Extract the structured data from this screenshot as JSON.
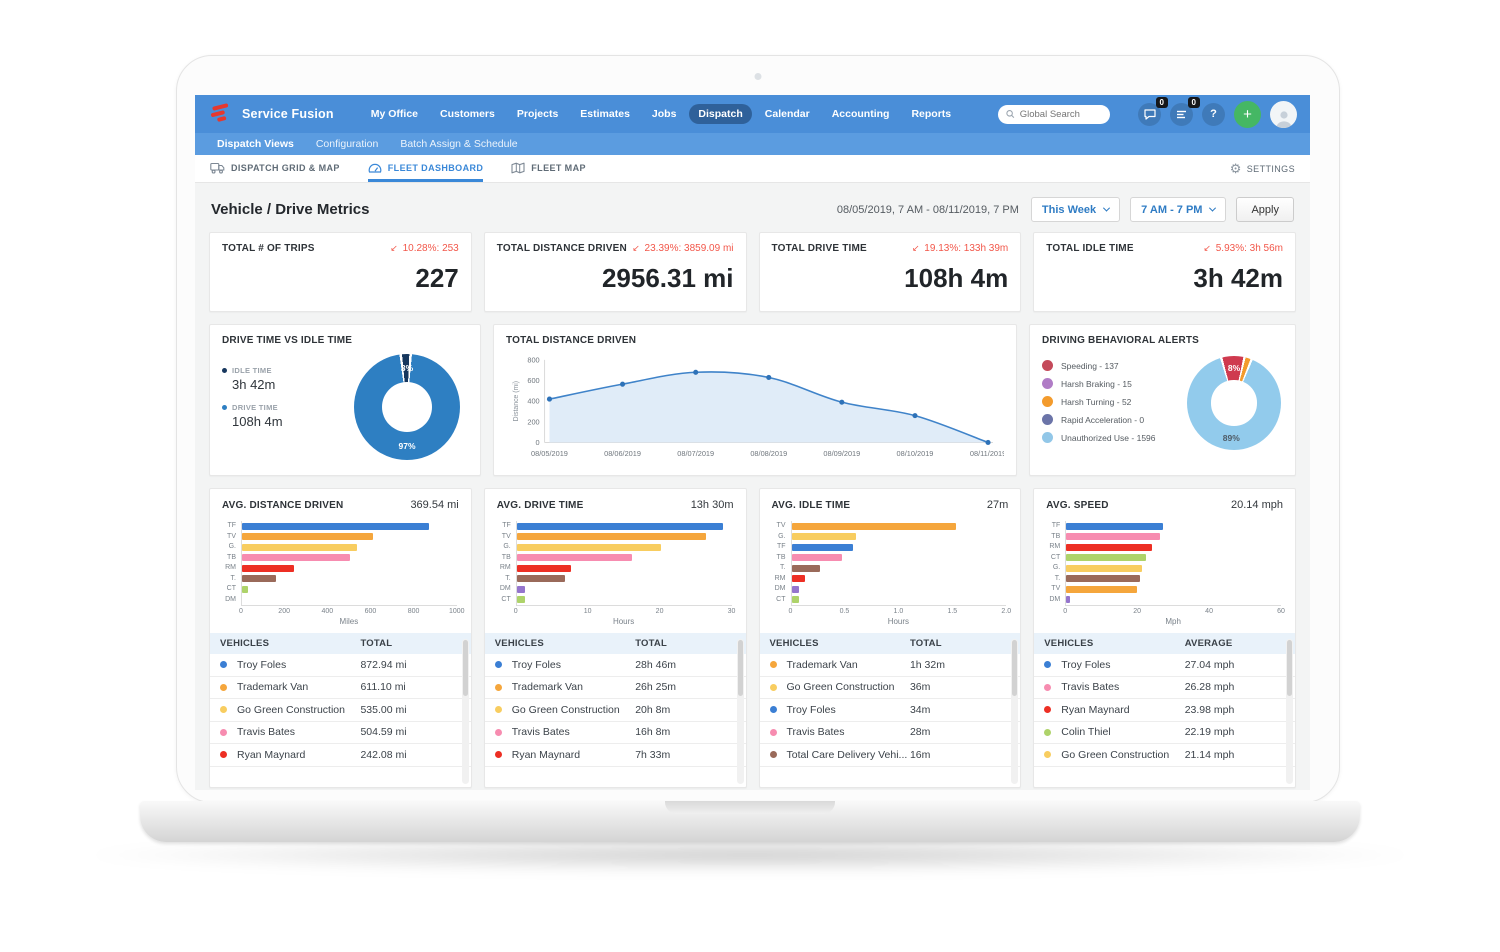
{
  "ui": {
    "settings_label": "SETTINGS",
    "delta_arrow": "↙",
    "help_glyph": "?",
    "plus_glyph": "+",
    "colors": {
      "topnav": "#4a8ed8",
      "subnav": "#5b9ce0",
      "active_tab": "#3a88d8",
      "delta_red": "#f2574a",
      "link_blue": "#2f7cc4",
      "brand_red": "#e6382e"
    }
  },
  "topnav": {
    "brand": "Service Fusion",
    "items": [
      {
        "label": "My Office"
      },
      {
        "label": "Customers"
      },
      {
        "label": "Projects"
      },
      {
        "label": "Estimates"
      },
      {
        "label": "Jobs"
      },
      {
        "label": "Dispatch",
        "active": true
      },
      {
        "label": "Calendar"
      },
      {
        "label": "Accounting"
      },
      {
        "label": "Reports"
      }
    ],
    "search_placeholder": "Global Search",
    "chat_badge": "0",
    "alerts_badge": "0"
  },
  "subnav": {
    "items": [
      {
        "label": "Dispatch Views",
        "active": true
      },
      {
        "label": "Configuration"
      },
      {
        "label": "Batch Assign & Schedule"
      }
    ]
  },
  "tabs": [
    {
      "label": "DISPATCH GRID & MAP"
    },
    {
      "label": "FLEET DASHBOARD",
      "active": true
    },
    {
      "label": "FLEET MAP"
    }
  ],
  "page": {
    "title": "Vehicle / Drive Metrics",
    "date_range": "08/05/2019, 7 AM - 08/11/2019, 7 PM",
    "week_filter": "This Week",
    "time_filter": "7 AM - 7 PM",
    "apply_label": "Apply"
  },
  "kpis": [
    {
      "label": "TOTAL # OF TRIPS",
      "delta": "10.28%: 253",
      "value": "227"
    },
    {
      "label": "TOTAL DISTANCE DRIVEN",
      "delta": "23.39%: 3859.09 mi",
      "value": "2956.31 mi"
    },
    {
      "label": "TOTAL DRIVE TIME",
      "delta": "19.13%: 133h 39m",
      "value": "108h 4m"
    },
    {
      "label": "TOTAL IDLE TIME",
      "delta": "5.93%: 3h 56m",
      "value": "3h 42m"
    }
  ],
  "chart_data": [
    {
      "id": "drive-vs-idle",
      "type": "pie",
      "title": "DRIVE TIME VS IDLE TIME",
      "slices": [
        {
          "label": "IDLE TIME",
          "value": "3h 42m",
          "pct": 3,
          "color": "#17375e",
          "pct_label": "3%",
          "pct_label_color": "#ffffff"
        },
        {
          "label": "DRIVE TIME",
          "value": "108h 4m",
          "pct": 97,
          "color": "#2e7fc2",
          "pct_label": "97%",
          "pct_label_color": "#ffffff"
        }
      ]
    },
    {
      "id": "total-distance-trend",
      "type": "area",
      "title": "TOTAL DISTANCE DRIVEN",
      "x": [
        "08/05/2019",
        "08/06/2019",
        "08/07/2019",
        "08/08/2019",
        "08/09/2019",
        "08/10/2019",
        "08/11/2019"
      ],
      "values": [
        420,
        565,
        680,
        630,
        390,
        260,
        0
      ],
      "ylabel": "Distance (mi)",
      "yticks": [
        0,
        200,
        400,
        600,
        800
      ],
      "ylim": [
        0,
        800
      ],
      "line_color": "#3f83c9",
      "fill_color": "#dbe9f7"
    },
    {
      "id": "behavioral-alerts",
      "type": "pie",
      "title": "DRIVING BEHAVIORAL ALERTS",
      "legend": [
        {
          "label": "Speeding - 137",
          "color": "#c44a5a"
        },
        {
          "label": "Harsh Braking - 15",
          "color": "#b07cc6"
        },
        {
          "label": "Harsh Turning - 52",
          "color": "#f39b2d"
        },
        {
          "label": "Rapid Acceleration - 0",
          "color": "#6b74a8"
        },
        {
          "label": "Unauthorized Use - 1596",
          "color": "#92c7e8"
        }
      ],
      "slices": [
        {
          "label": "Speeding",
          "pct": 8,
          "color": "#cf3a4f",
          "pct_label": "8%",
          "pct_label_color": "#ffffff"
        },
        {
          "label": "Harsh Turning",
          "pct": 2.5,
          "color": "#f39b2d"
        },
        {
          "label": "Unauthorized Use",
          "pct": 89.5,
          "color": "#92cbec",
          "pct_label": "89%",
          "pct_label_color": "#4f5b66"
        }
      ]
    },
    {
      "id": "avg-distance",
      "type": "bar",
      "title": "AVG. DISTANCE DRIVEN",
      "headline": "369.54 mi",
      "categories": [
        "TF",
        "TV",
        "G.",
        "TB",
        "RM",
        "T.",
        "CT",
        "DM"
      ],
      "values": [
        872.94,
        611.1,
        535,
        504.59,
        242.08,
        160,
        30,
        0
      ],
      "colors": [
        "#3b7fd4",
        "#f5a63c",
        "#f8cd60",
        "#f78cb0",
        "#ed2f24",
        "#9a6a5a",
        "#aed36a",
        "#9575cd"
      ],
      "xmax": 1000,
      "xticks": [
        "0",
        "200",
        "400",
        "600",
        "800",
        "1000"
      ],
      "xlabel": "Miles",
      "table": {
        "headers": [
          "VEHICLES",
          "TOTAL"
        ],
        "rows": [
          {
            "name": "Troy Foles",
            "value": "872.94 mi",
            "color": "#3b7fd4"
          },
          {
            "name": "Trademark Van",
            "value": "611.10 mi",
            "color": "#f5a63c"
          },
          {
            "name": "Go Green Construction",
            "value": "535.00 mi",
            "color": "#f8cd60"
          },
          {
            "name": "Travis Bates",
            "value": "504.59 mi",
            "color": "#f78cb0"
          },
          {
            "name": "Ryan Maynard",
            "value": "242.08 mi",
            "color": "#ed2f24"
          }
        ]
      }
    },
    {
      "id": "avg-drive-time",
      "type": "bar",
      "title": "AVG. DRIVE TIME",
      "headline": "13h 30m",
      "categories": [
        "TF",
        "TV",
        "G.",
        "TB",
        "RM",
        "T.",
        "DM",
        "CT"
      ],
      "values": [
        28.77,
        26.42,
        20.13,
        16.13,
        7.55,
        6.7,
        1.2,
        1.1
      ],
      "colors": [
        "#3b7fd4",
        "#f5a63c",
        "#f8cd60",
        "#f78cb0",
        "#ed2f24",
        "#9a6a5a",
        "#9575cd",
        "#aed36a"
      ],
      "xmax": 30,
      "xticks": [
        "0",
        "10",
        "20",
        "30"
      ],
      "xlabel": "Hours",
      "table": {
        "headers": [
          "VEHICLES",
          "TOTAL"
        ],
        "rows": [
          {
            "name": "Troy Foles",
            "value": "28h 46m",
            "color": "#3b7fd4"
          },
          {
            "name": "Trademark Van",
            "value": "26h 25m",
            "color": "#f5a63c"
          },
          {
            "name": "Go Green Construction",
            "value": "20h 8m",
            "color": "#f8cd60"
          },
          {
            "name": "Travis Bates",
            "value": "16h 8m",
            "color": "#f78cb0"
          },
          {
            "name": "Ryan Maynard",
            "value": "7h 33m",
            "color": "#ed2f24"
          }
        ]
      }
    },
    {
      "id": "avg-idle-time",
      "type": "bar",
      "title": "AVG. IDLE TIME",
      "headline": "27m",
      "categories": [
        "TV",
        "G.",
        "TF",
        "TB",
        "T.",
        "RM",
        "DM",
        "CT"
      ],
      "values": [
        1.53,
        0.6,
        0.57,
        0.47,
        0.27,
        0.13,
        0.07,
        0.07
      ],
      "colors": [
        "#f5a63c",
        "#f8cd60",
        "#3b7fd4",
        "#f78cb0",
        "#9a6a5a",
        "#ed2f24",
        "#9575cd",
        "#aed36a"
      ],
      "xmax": 2,
      "xticks": [
        "0",
        "0.5",
        "1.0",
        "1.5",
        "2.0"
      ],
      "xlabel": "Hours",
      "table": {
        "headers": [
          "VEHICLES",
          "TOTAL"
        ],
        "rows": [
          {
            "name": "Trademark Van",
            "value": "1h 32m",
            "color": "#f5a63c"
          },
          {
            "name": "Go Green Construction",
            "value": "36m",
            "color": "#f8cd60"
          },
          {
            "name": "Troy Foles",
            "value": "34m",
            "color": "#3b7fd4"
          },
          {
            "name": "Travis Bates",
            "value": "28m",
            "color": "#f78cb0"
          },
          {
            "name": "Total Care Delivery Vehi...",
            "value": "16m",
            "color": "#9a6a5a"
          }
        ]
      }
    },
    {
      "id": "avg-speed",
      "type": "bar",
      "title": "AVG. SPEED",
      "headline": "20.14 mph",
      "categories": [
        "TF",
        "TB",
        "RM",
        "CT",
        "G.",
        "T.",
        "TV",
        "DM"
      ],
      "values": [
        27.04,
        26.28,
        23.98,
        22.19,
        21.14,
        20.5,
        19.7,
        1
      ],
      "colors": [
        "#3b7fd4",
        "#f78cb0",
        "#ed2f24",
        "#aed36a",
        "#f8cd60",
        "#9a6a5a",
        "#f5a63c",
        "#9575cd"
      ],
      "xmax": 60,
      "xticks": [
        "0",
        "20",
        "40",
        "60"
      ],
      "xlabel": "Mph",
      "table": {
        "headers": [
          "VEHICLES",
          "AVERAGE"
        ],
        "rows": [
          {
            "name": "Troy Foles",
            "value": "27.04 mph",
            "color": "#3b7fd4"
          },
          {
            "name": "Travis Bates",
            "value": "26.28 mph",
            "color": "#f78cb0"
          },
          {
            "name": "Ryan Maynard",
            "value": "23.98 mph",
            "color": "#ed2f24"
          },
          {
            "name": "Colin Thiel",
            "value": "22.19 mph",
            "color": "#aed36a"
          },
          {
            "name": "Go Green Construction",
            "value": "21.14 mph",
            "color": "#f8cd60"
          }
        ]
      }
    }
  ]
}
